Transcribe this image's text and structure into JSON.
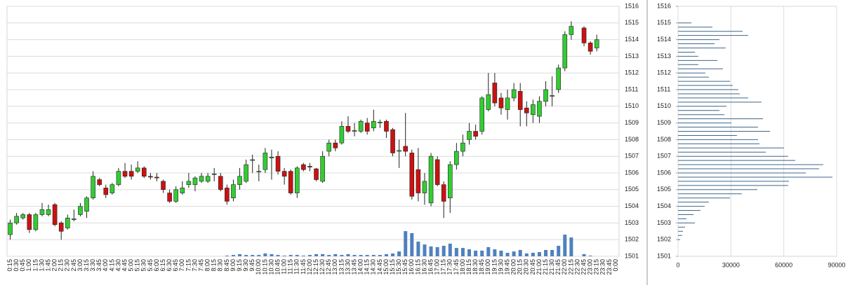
{
  "chart_data": [
    {
      "type": "candlestick",
      "categories": [
        "0:15",
        "0:30",
        "0:45",
        "1:00",
        "1:15",
        "1:30",
        "1:45",
        "2:00",
        "2:15",
        "2:30",
        "2:45",
        "3:00",
        "3:15",
        "3:30",
        "3:45",
        "4:00",
        "4:15",
        "4:30",
        "4:45",
        "5:00",
        "5:15",
        "5:30",
        "5:45",
        "6:00",
        "6:15",
        "6:30",
        "6:45",
        "7:00",
        "7:15",
        "7:30",
        "7:45",
        "8:00",
        "8:15",
        "8:30",
        "8:45",
        "9:00",
        "9:15",
        "9:30",
        "9:45",
        "10:00",
        "10:15",
        "10:30",
        "10:45",
        "11:00",
        "11:15",
        "11:30",
        "11:45",
        "12:00",
        "12:15",
        "12:30",
        "12:45",
        "13:00",
        "13:15",
        "13:30",
        "13:45",
        "14:00",
        "14:15",
        "14:30",
        "14:45",
        "15:00",
        "15:15",
        "15:30",
        "15:45",
        "16:00",
        "16:15",
        "16:30",
        "16:45",
        "17:00",
        "17:15",
        "17:30",
        "17:45",
        "18:00",
        "18:15",
        "18:30",
        "18:45",
        "19:00",
        "19:15",
        "19:30",
        "19:45",
        "20:00",
        "20:15",
        "20:30",
        "20:45",
        "21:00",
        "21:15",
        "21:30",
        "21:45",
        "22:00",
        "22:15",
        "22:30",
        "22:45",
        "23:00",
        "23:15",
        "23:30",
        "23:45",
        "0:00"
      ],
      "open": [
        1502.3,
        1503.0,
        1503.3,
        1503.5,
        1502.6,
        1503.5,
        1503.5,
        1504.1,
        1503.0,
        1502.7,
        1503.2,
        1503.5,
        1503.7,
        1504.5,
        1505.6,
        1505.1,
        1504.8,
        1505.3,
        1506.1,
        1506.1,
        1506.1,
        1506.3,
        1505.8,
        1505.75,
        1505.5,
        1504.8,
        1504.3,
        1504.8,
        1505.3,
        1505.3,
        1505.5,
        1505.5,
        1505.9,
        1505.8,
        1505.1,
        1504.5,
        1505.3,
        1505.5,
        1506.75,
        1506.1,
        1506.2,
        1506.9,
        1507.0,
        1506.1,
        1506.1,
        1504.8,
        1506.5,
        1506.4,
        1506.25,
        1505.5,
        1507.3,
        1507.8,
        1507.8,
        1508.8,
        1508.5,
        1508.5,
        1509.0,
        1508.7,
        1509.0,
        1509.1,
        1508.6,
        1507.3,
        1507.6,
        1507.2,
        1506.2,
        1504.8,
        1504.2,
        1506.8,
        1505.3,
        1504.5,
        1506.5,
        1507.3,
        1508.0,
        1508.5,
        1508.5,
        1509.8,
        1511.4,
        1510.5,
        1509.8,
        1510.5,
        1510.9,
        1509.9,
        1509.5,
        1509.4,
        1510.3,
        1510.6,
        1511.0,
        1512.3,
        1514.3,
        null,
        1514.7,
        1513.8,
        1513.5,
        null,
        null,
        null
      ],
      "high": [
        1503.2,
        1503.6,
        1503.6,
        1503.6,
        1503.6,
        1504.2,
        1504.1,
        1504.2,
        1503.1,
        1503.5,
        1503.8,
        1504.2,
        1504.6,
        1506.1,
        1505.7,
        1505.3,
        1505.4,
        1506.3,
        1506.6,
        1506.5,
        1506.7,
        1506.4,
        1506.0,
        1506.0,
        1505.6,
        1505.0,
        1505.2,
        1505.5,
        1506.0,
        1505.8,
        1506.0,
        1506.0,
        1506.3,
        1506.0,
        1505.3,
        1505.6,
        1506.3,
        1506.8,
        1507.1,
        1506.5,
        1507.5,
        1507.4,
        1507.3,
        1506.3,
        1506.2,
        1506.4,
        1506.6,
        1506.6,
        1506.3,
        1507.3,
        1508.0,
        1508.0,
        1509.1,
        1509.4,
        1509.0,
        1509.2,
        1509.3,
        1509.8,
        1509.2,
        1509.2,
        1508.7,
        1508.0,
        1509.6,
        1507.4,
        1507.5,
        1506.0,
        1507.2,
        1507.0,
        1505.5,
        1506.7,
        1507.8,
        1508.3,
        1509.0,
        1508.9,
        1510.6,
        1512.0,
        1512.0,
        1510.8,
        1511.0,
        1511.4,
        1511.4,
        1510.3,
        1510.4,
        1510.6,
        1511.5,
        1511.8,
        1512.5,
        1514.5,
        1515.1,
        null,
        1514.8,
        1513.9,
        1514.3,
        null,
        null,
        null
      ],
      "low": [
        1502.0,
        1502.9,
        1503.2,
        1502.4,
        1502.5,
        1503.4,
        1503.4,
        1502.8,
        1502.0,
        1502.6,
        1503.1,
        1503.4,
        1503.3,
        1504.4,
        1505.2,
        1504.5,
        1504.7,
        1505.2,
        1505.7,
        1505.6,
        1506.0,
        1505.7,
        1505.6,
        1505.5,
        1504.8,
        1504.2,
        1504.2,
        1504.7,
        1505.1,
        1504.9,
        1505.4,
        1505.4,
        1505.5,
        1504.9,
        1504.1,
        1504.3,
        1505.0,
        1505.4,
        1506.0,
        1505.5,
        1506.0,
        1505.6,
        1505.9,
        1505.3,
        1504.7,
        1504.5,
        1506.1,
        1506.1,
        1505.5,
        1505.4,
        1507.0,
        1507.3,
        1507.7,
        1508.4,
        1508.2,
        1508.4,
        1508.3,
        1508.5,
        1508.7,
        1508.1,
        1507.0,
        1506.3,
        1507.0,
        1504.4,
        1504.3,
        1504.1,
        1504.0,
        1505.2,
        1503.3,
        1503.6,
        1506.2,
        1507.0,
        1507.7,
        1508.0,
        1508.3,
        1509.7,
        1510.0,
        1509.5,
        1509.2,
        1510.3,
        1508.8,
        1508.8,
        1509.0,
        1509.0,
        1510.0,
        1510.0,
        1510.8,
        1512.1,
        1514.0,
        null,
        1513.6,
        1513.1,
        1513.3,
        null,
        null,
        null
      ],
      "close": [
        1503.0,
        1503.4,
        1503.5,
        1502.6,
        1503.5,
        1503.8,
        1503.8,
        1502.9,
        1502.5,
        1503.3,
        1503.25,
        1504.0,
        1504.5,
        1505.8,
        1505.3,
        1504.7,
        1505.3,
        1506.1,
        1505.8,
        1505.8,
        1506.3,
        1505.8,
        1505.75,
        1505.7,
        1505.0,
        1504.3,
        1505.0,
        1505.1,
        1505.5,
        1505.7,
        1505.8,
        1505.8,
        1505.95,
        1505.0,
        1504.3,
        1505.3,
        1505.8,
        1506.5,
        1506.8,
        1506.1,
        1507.2,
        1506.95,
        1506.1,
        1505.8,
        1504.8,
        1506.3,
        1506.2,
        1506.35,
        1505.6,
        1507.0,
        1507.8,
        1507.5,
        1508.8,
        1508.5,
        1508.55,
        1509.1,
        1508.5,
        1509.1,
        1509.05,
        1508.5,
        1507.2,
        1507.35,
        1507.3,
        1504.6,
        1504.8,
        1505.5,
        1507.0,
        1505.3,
        1504.3,
        1506.5,
        1507.3,
        1507.8,
        1508.5,
        1508.2,
        1510.5,
        1510.7,
        1510.2,
        1509.9,
        1510.5,
        1511.0,
        1509.8,
        1509.6,
        1510.1,
        1510.3,
        1511.0,
        1510.65,
        1512.3,
        1514.3,
        1514.8,
        null,
        1513.8,
        1513.3,
        1514.0,
        null,
        null,
        null
      ],
      "volume": [
        null,
        null,
        null,
        null,
        null,
        null,
        null,
        null,
        null,
        null,
        null,
        null,
        null,
        null,
        null,
        null,
        null,
        null,
        null,
        null,
        null,
        null,
        null,
        null,
        null,
        null,
        null,
        null,
        null,
        null,
        null,
        null,
        null,
        null,
        400,
        800,
        1300,
        800,
        800,
        800,
        1700,
        1300,
        800,
        400,
        800,
        800,
        400,
        800,
        1300,
        1300,
        800,
        1300,
        800,
        1300,
        800,
        800,
        800,
        800,
        800,
        1300,
        1700,
        2900,
        15100,
        13900,
        8800,
        7100,
        5900,
        5500,
        6300,
        7600,
        5000,
        5000,
        4200,
        3400,
        3400,
        5500,
        4200,
        3400,
        2100,
        2900,
        3800,
        1700,
        2100,
        2500,
        3800,
        3800,
        6300,
        13000,
        11300,
        null,
        1300,
        400,
        null,
        null,
        null,
        null
      ],
      "up_color": "#33cc33",
      "down_color": "#cc1111",
      "volume_color": "#4f81bd",
      "ylim": [
        1501,
        1516
      ],
      "yticks": [
        1501,
        1502,
        1503,
        1504,
        1505,
        1506,
        1507,
        1508,
        1509,
        1510,
        1511,
        1512,
        1513,
        1514,
        1515,
        1516
      ],
      "y2lim": [
        0,
        150000
      ],
      "grid": true
    },
    {
      "type": "hbar",
      "y": [
        1515.0,
        1514.75,
        1514.5,
        1514.25,
        1514.0,
        1513.75,
        1513.5,
        1513.25,
        1513.0,
        1512.75,
        1512.5,
        1512.25,
        1512.0,
        1511.75,
        1511.5,
        1511.25,
        1511.0,
        1510.75,
        1510.5,
        1510.25,
        1510.0,
        1509.75,
        1509.5,
        1509.25,
        1509.0,
        1508.75,
        1508.5,
        1508.25,
        1508.0,
        1507.75,
        1507.5,
        1507.25,
        1507.0,
        1506.75,
        1506.5,
        1506.25,
        1506.0,
        1505.75,
        1505.5,
        1505.25,
        1505.0,
        1504.75,
        1504.5,
        1504.25,
        1504.0,
        1503.75,
        1503.5,
        1503.25,
        1503.0,
        1502.75,
        1502.5,
        1502.25,
        1502.0
      ],
      "values": [
        7600,
        19500,
        36600,
        39800,
        23500,
        20700,
        27000,
        9600,
        11500,
        22300,
        11500,
        25500,
        15500,
        17500,
        29500,
        31000,
        34200,
        35000,
        39800,
        47400,
        27500,
        23500,
        26300,
        48200,
        30300,
        45400,
        52200,
        33400,
        45400,
        46200,
        60100,
        49800,
        62500,
        66500,
        82400,
        80000,
        72500,
        87600,
        62900,
        62500,
        45000,
        36200,
        29500,
        17500,
        15100,
        12700,
        8800,
        4800,
        9600,
        4000,
        2800,
        2400,
        1200
      ],
      "color": "#3f6688",
      "xlim": [
        0,
        90000
      ],
      "xticks": [
        0,
        30000,
        60000,
        90000
      ],
      "ylim": [
        1501,
        1516
      ],
      "yticks": [
        1501,
        1502,
        1503,
        1504,
        1505,
        1506,
        1507,
        1508,
        1509,
        1510,
        1511,
        1512,
        1513,
        1514,
        1515,
        1516
      ],
      "grid": true
    }
  ]
}
